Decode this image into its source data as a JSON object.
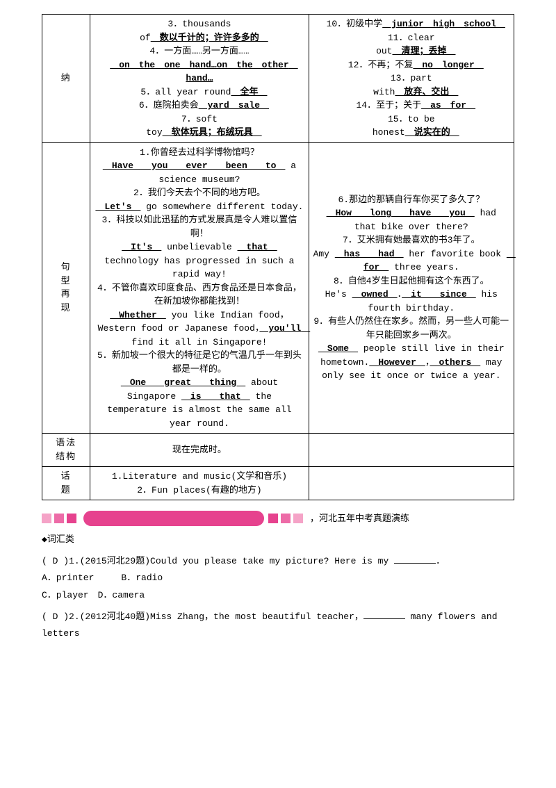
{
  "row1": {
    "h": "纳",
    "c2p1": "3．thousands",
    "c2p2_a": "of",
    "c2p2_u": "　数以千计的；许许多多的　",
    "c2p3": "4．一方面……另一方面……",
    "c2p4_u": "　on　the　one　hand…on　the　other　hand…",
    "c2p5_a": "5．all year round",
    "c2p5_u": "　全年　",
    "c2p6_a": "6．庭院拍卖会",
    "c2p6_u": "　yard　sale　",
    "c2p7": "7．soft",
    "c2p8_a": "toy",
    "c2p8_u": "　软体玩具；布绒玩具　",
    "c3p1_a": "10．初级中学",
    "c3p1_u": "　junior　high　school　",
    "c3p2": "11．clear",
    "c3p3_a": "out",
    "c3p3_u": "　清理；丢掉　",
    "c3p4_a": "12．不再；不复",
    "c3p4_u": "　no　longer　",
    "c3p5": "13．part",
    "c3p6_a": "with",
    "c3p6_u": "　放弃、交出　",
    "c3p7_a": "14．至于；关于",
    "c3p7_u": "　as　for　",
    "c3p8": "15．to be",
    "c3p9_a": "honest",
    "c3p9_u": "　说实在的　"
  },
  "row2": {
    "h": "句\n型\n再\n现",
    "c2_1": "1.你曾经去过科学博物馆吗？",
    "c2_1u": "　Have　　you　　ever　　been　　to　",
    "c2_1b": " a science museum?",
    "c2_2": "2．我们今天去个不同的地方吧。",
    "c2_2u": "　Let's　",
    "c2_2b": " go somewhere different today.",
    "c2_3": "3．科技以如此迅猛的方式发展真是令人难以置信啊！",
    "c2_3u1": "　It's　",
    "c2_3m": " unbelievable ",
    "c2_3u2": "　that　",
    "c2_3b": " technology has progressed in such a rapid way!",
    "c2_4": "4．不管你喜欢印度食品、西方食品还是日本食品，在新加坡你都能找到！",
    "c2_4u1": "　Whether　",
    "c2_4m": " you like Indian food，Western food or Japanese food，",
    "c2_4u2": "　you'll　",
    "c2_4b": " find it all in Singapore!",
    "c2_5": "5．新加坡一个很大的特征是它的气温几乎一年到头都是一样的。",
    "c2_5u1": "　One　　great　　thing　",
    "c2_5m": " about Singapore ",
    "c2_5u2": "　is　　that　",
    "c2_5b": " the temperature is almost the same all year round.",
    "c3_6": "6.那边的那辆自行车你买了多久了？",
    "c3_6u": "　How　　long　　have　　you　",
    "c3_6b": " had that bike over there?",
    "c3_7": "7．艾米拥有她最喜欢的书3年了。",
    "c3_7a": "Amy ",
    "c3_7u1": "　has　　had　",
    "c3_7m": " her favorite book ",
    "c3_7u2": "　for　",
    "c3_7b": " three years.",
    "c3_8": "8．自他4岁生日起他拥有这个东西了。",
    "c3_8a": "He's ",
    "c3_8u1": "　owned　",
    "c3_8p": "．",
    "c3_8u2": "　it　　since　",
    "c3_8b": " his fourth birthday.",
    "c3_9": "9．有些人仍然住在家乡。然而，另一些人可能一年只能回家乡一两次。",
    "c3_9u1": "　Some　",
    "c3_9m": " people still live in their hometown.",
    "c3_9u2": "　However　",
    "c3_9c": "，",
    "c3_9u3": "　others　",
    "c3_9b": " may only see it once or twice a year."
  },
  "row3": {
    "h": "语法\n结构",
    "c": "现在完成时。"
  },
  "row4": {
    "h": "话\n题",
    "c": "1.Literature and music(文学和音乐)\n2．Fun places(有趣的地方)"
  },
  "banner": "，河北五年中考真题演练",
  "sec": "◆词汇类",
  "q1": {
    "ans": "( D )",
    "stem": "1.(2015河北29题)Could you please take my picture? Here is my ",
    "opts": "A．printer　　　B．radio\nC．player　D．camera"
  },
  "q2": {
    "ans": "( D )",
    "stem": "2.(2012河北40题)Miss Zhang，the most beautiful teacher，",
    "stem2": " many flowers and letters"
  }
}
